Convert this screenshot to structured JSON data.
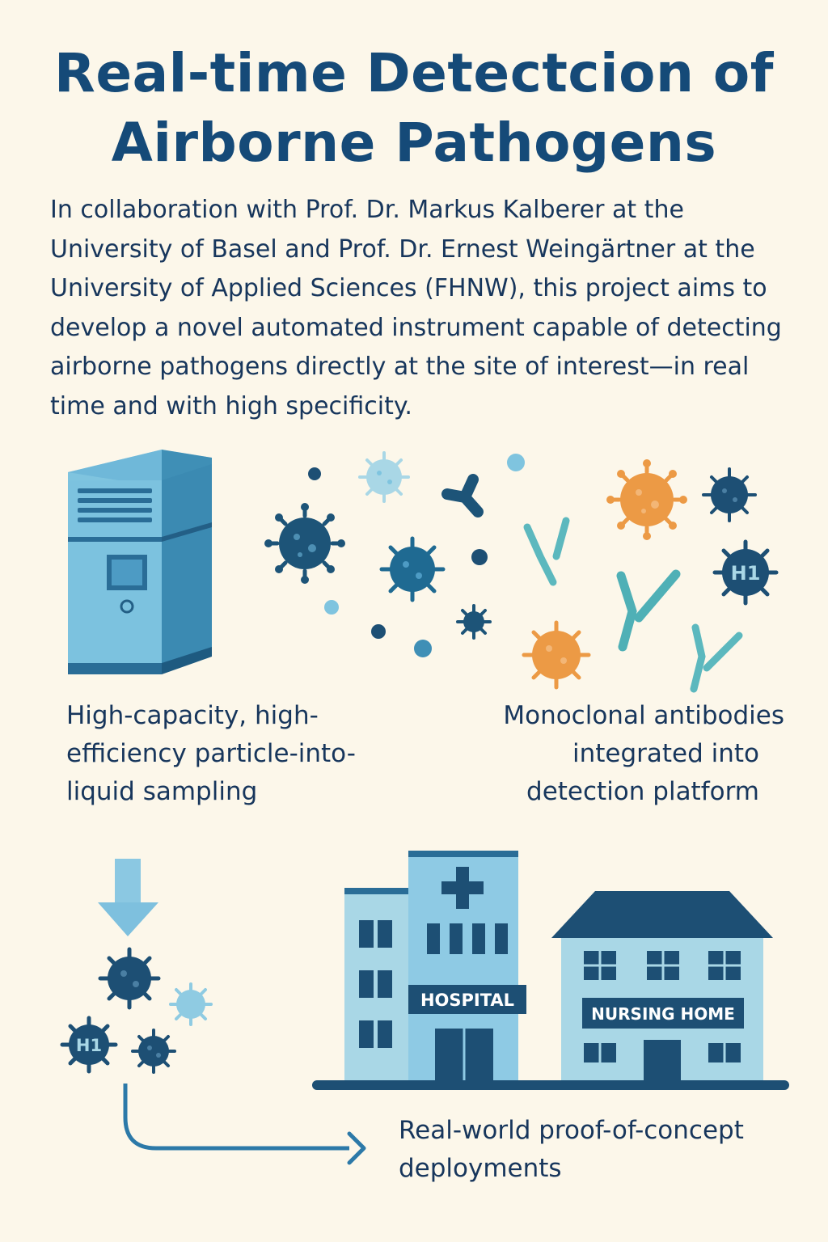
{
  "title": "Real-time Detectcion of Airborne Pathogens",
  "intro": "In collaboration with Prof. Dr. Markus Kalberer at the University of Basel and Prof. Dr. Ernest Weingärtner at the University of Applied Sciences (FHNW), this project aims to develop a novel automated instrument capable of detecting airborne pathogens directly at the site of interest—in real time and with high specificity.",
  "captions": {
    "sampling": "High-capacity, high-efficiency particle-into-liquid sampling",
    "antibodies_line1": "Monoclonal antibodies",
    "antibodies_line2": "integrated into",
    "antibodies_line3": "detection platform",
    "deployments": "Real-world proof-of-concept deployments"
  },
  "buildings": {
    "hospital_sign": "HOSPITAL",
    "nursing_home_sign": "NURSING HOME"
  },
  "virus_labels": {
    "h1_cloud": "H1",
    "h1_sample": "H1"
  },
  "colors": {
    "background": "#fcf7ea",
    "navy": "#154a78",
    "dark_blue": "#1d5478",
    "light_blue": "#7fc4df",
    "pale_blue": "#a9d7e6",
    "teal": "#5cb8be",
    "orange": "#ec9a45"
  }
}
